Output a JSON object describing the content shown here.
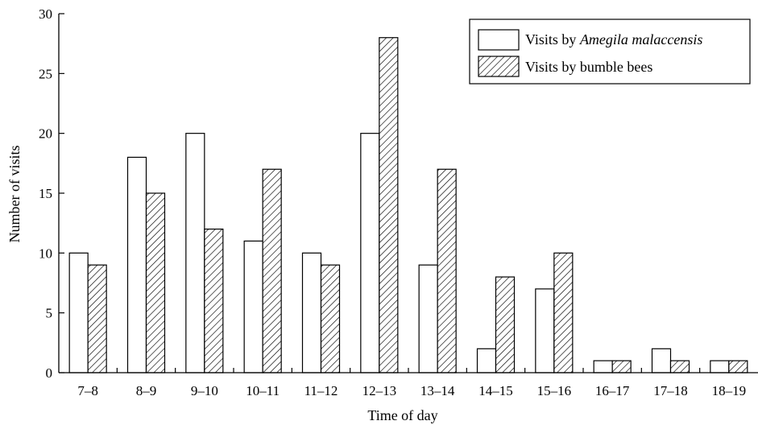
{
  "chart_data": {
    "type": "bar",
    "xlabel": "Time of day",
    "ylabel": "Number of visits",
    "ylim": [
      0,
      30
    ],
    "yticks": [
      0,
      5,
      10,
      15,
      20,
      25,
      30
    ],
    "grid": false,
    "legend_position": "top-right",
    "categories": [
      "7–8",
      "8–9",
      "9–10",
      "10–11",
      "11–12",
      "12–13",
      "13–14",
      "14–15",
      "15–16",
      "16–17",
      "17–18",
      "18–19"
    ],
    "series": [
      {
        "name": "Visits by Amegila malaccensis",
        "name_prefix": "Visits by ",
        "name_italic": "Amegila malaccensis",
        "fill": "plain-white",
        "values": [
          10,
          18,
          20,
          11,
          10,
          20,
          9,
          2,
          7,
          1,
          2,
          1
        ]
      },
      {
        "name": "Visits by bumble bees",
        "fill": "diagonal-hatch",
        "values": [
          9,
          15,
          12,
          17,
          9,
          28,
          17,
          8,
          10,
          1,
          1,
          1
        ]
      }
    ]
  },
  "colors": {
    "stroke": "#000000",
    "background": "#ffffff"
  }
}
